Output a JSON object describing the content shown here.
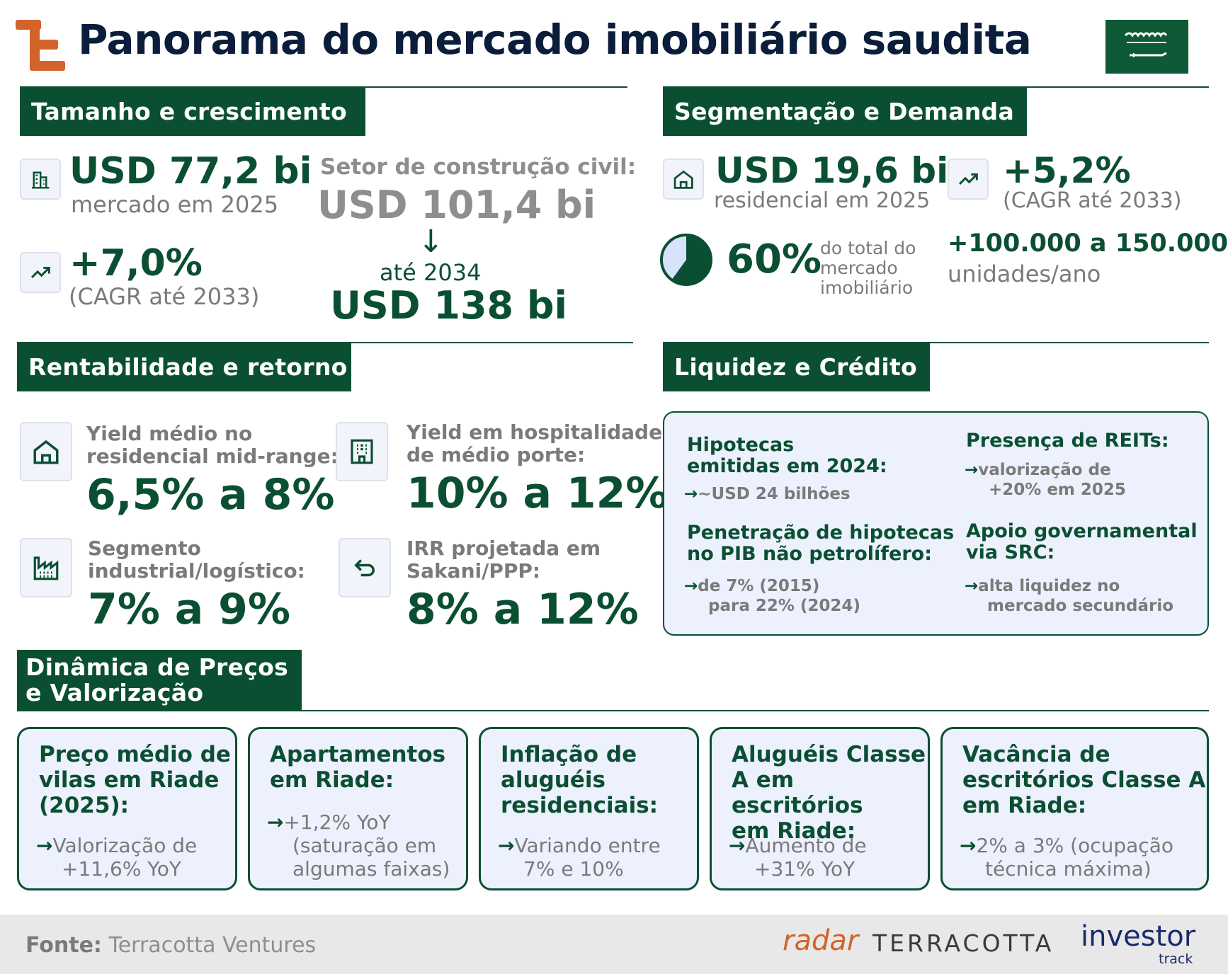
{
  "header": {
    "title": "Panorama do mercado imobiliário saudita",
    "brand_color": "#0b4f33",
    "accent_color": "#d2632a"
  },
  "size_growth": {
    "heading": "Tamanho e crescimento",
    "market_value": "USD 77,2 bi",
    "market_label": "mercado em 2025",
    "cagr_value": "+7,0%",
    "cagr_label": "(CAGR até 2033)",
    "construction_label": "Setor de construção civil:",
    "construction_now": "USD 101,4 bi",
    "construction_arrow": "↓",
    "construction_year": "até 2034",
    "construction_future": "USD 138 bi"
  },
  "segmentation": {
    "heading": "Segmentação e Demanda",
    "residential_value": "USD 19,6 bi",
    "residential_label": "residencial em 2025",
    "res_cagr_value": "+5,2%",
    "res_cagr_label": "(CAGR até 2033)",
    "share_value": "60%",
    "share_fraction": 0.6,
    "share_label_1": "do total do",
    "share_label_2": "mercado",
    "share_label_3": "imobiliário",
    "units_value": "+100.000 a 150.000",
    "units_label": "unidades/ano"
  },
  "profitability": {
    "heading": "Rentabilidade e retorno",
    "items": [
      {
        "label_1": "Yield médio no",
        "label_2": "residencial mid-range:",
        "value": "6,5% a 8%",
        "icon": "home-icon"
      },
      {
        "label_1": "Yield em hospitalidade",
        "label_2": "de médio porte:",
        "value": "10% a 12%",
        "icon": "building-icon"
      },
      {
        "label_1": "Segmento",
        "label_2": "industrial/logístico:",
        "value": "7% a 9%",
        "icon": "factory-icon"
      },
      {
        "label_1": "IRR projetada em",
        "label_2": "Sakani/PPP:",
        "value": "8% a 12%",
        "icon": "return-arrow-icon"
      }
    ]
  },
  "liquidity": {
    "heading": "Liquidez e Crédito",
    "blocks": [
      {
        "title_1": "Hipotecas",
        "title_2": "emitidas em 2024:",
        "text_1": "~USD 24 bilhões",
        "text_2": ""
      },
      {
        "title_1": "Presença de REITs:",
        "title_2": "",
        "text_1": "valorização de",
        "text_2": "+20% em 2025"
      },
      {
        "title_1": "Penetração de hipotecas",
        "title_2": "no PIB não petrolífero:",
        "text_1": "de 7% (2015)",
        "text_2": "para 22% (2024)"
      },
      {
        "title_1": "Apoio governamental",
        "title_2": "via SRC:",
        "text_1": "alta liquidez no",
        "text_2": "mercado secundário"
      }
    ]
  },
  "prices": {
    "heading_1": "Dinâmica de Preços",
    "heading_2": "e Valorização",
    "cards": [
      {
        "title": [
          "Preço médio de",
          "vilas em Riade",
          "(2025):"
        ],
        "text": [
          "Valorização de",
          "+11,6% YoY"
        ]
      },
      {
        "title": [
          "Apartamentos",
          "em Riade:"
        ],
        "text": [
          "+1,2% YoY",
          "(saturação em",
          "algumas faixas)"
        ]
      },
      {
        "title": [
          "Inflação de",
          "aluguéis",
          "residenciais:"
        ],
        "text": [
          "Variando entre",
          "7% e 10%"
        ]
      },
      {
        "title": [
          "Aluguéis Classe",
          "A em escritórios",
          "em Riade:"
        ],
        "text": [
          "Aumento de",
          "+31% YoY"
        ]
      },
      {
        "title": [
          "Vacância de",
          "escritórios Classe A",
          "em Riade:"
        ],
        "text": [
          "2% a 3% (ocupação",
          "técnica máxima)"
        ]
      }
    ]
  },
  "footer": {
    "source_label": "Fonte:",
    "source_value": "Terracotta Ventures",
    "brand_radar": "radar",
    "brand_terracotta": "TERRACOTTA",
    "brand_investor": "investor",
    "brand_track": "track"
  }
}
